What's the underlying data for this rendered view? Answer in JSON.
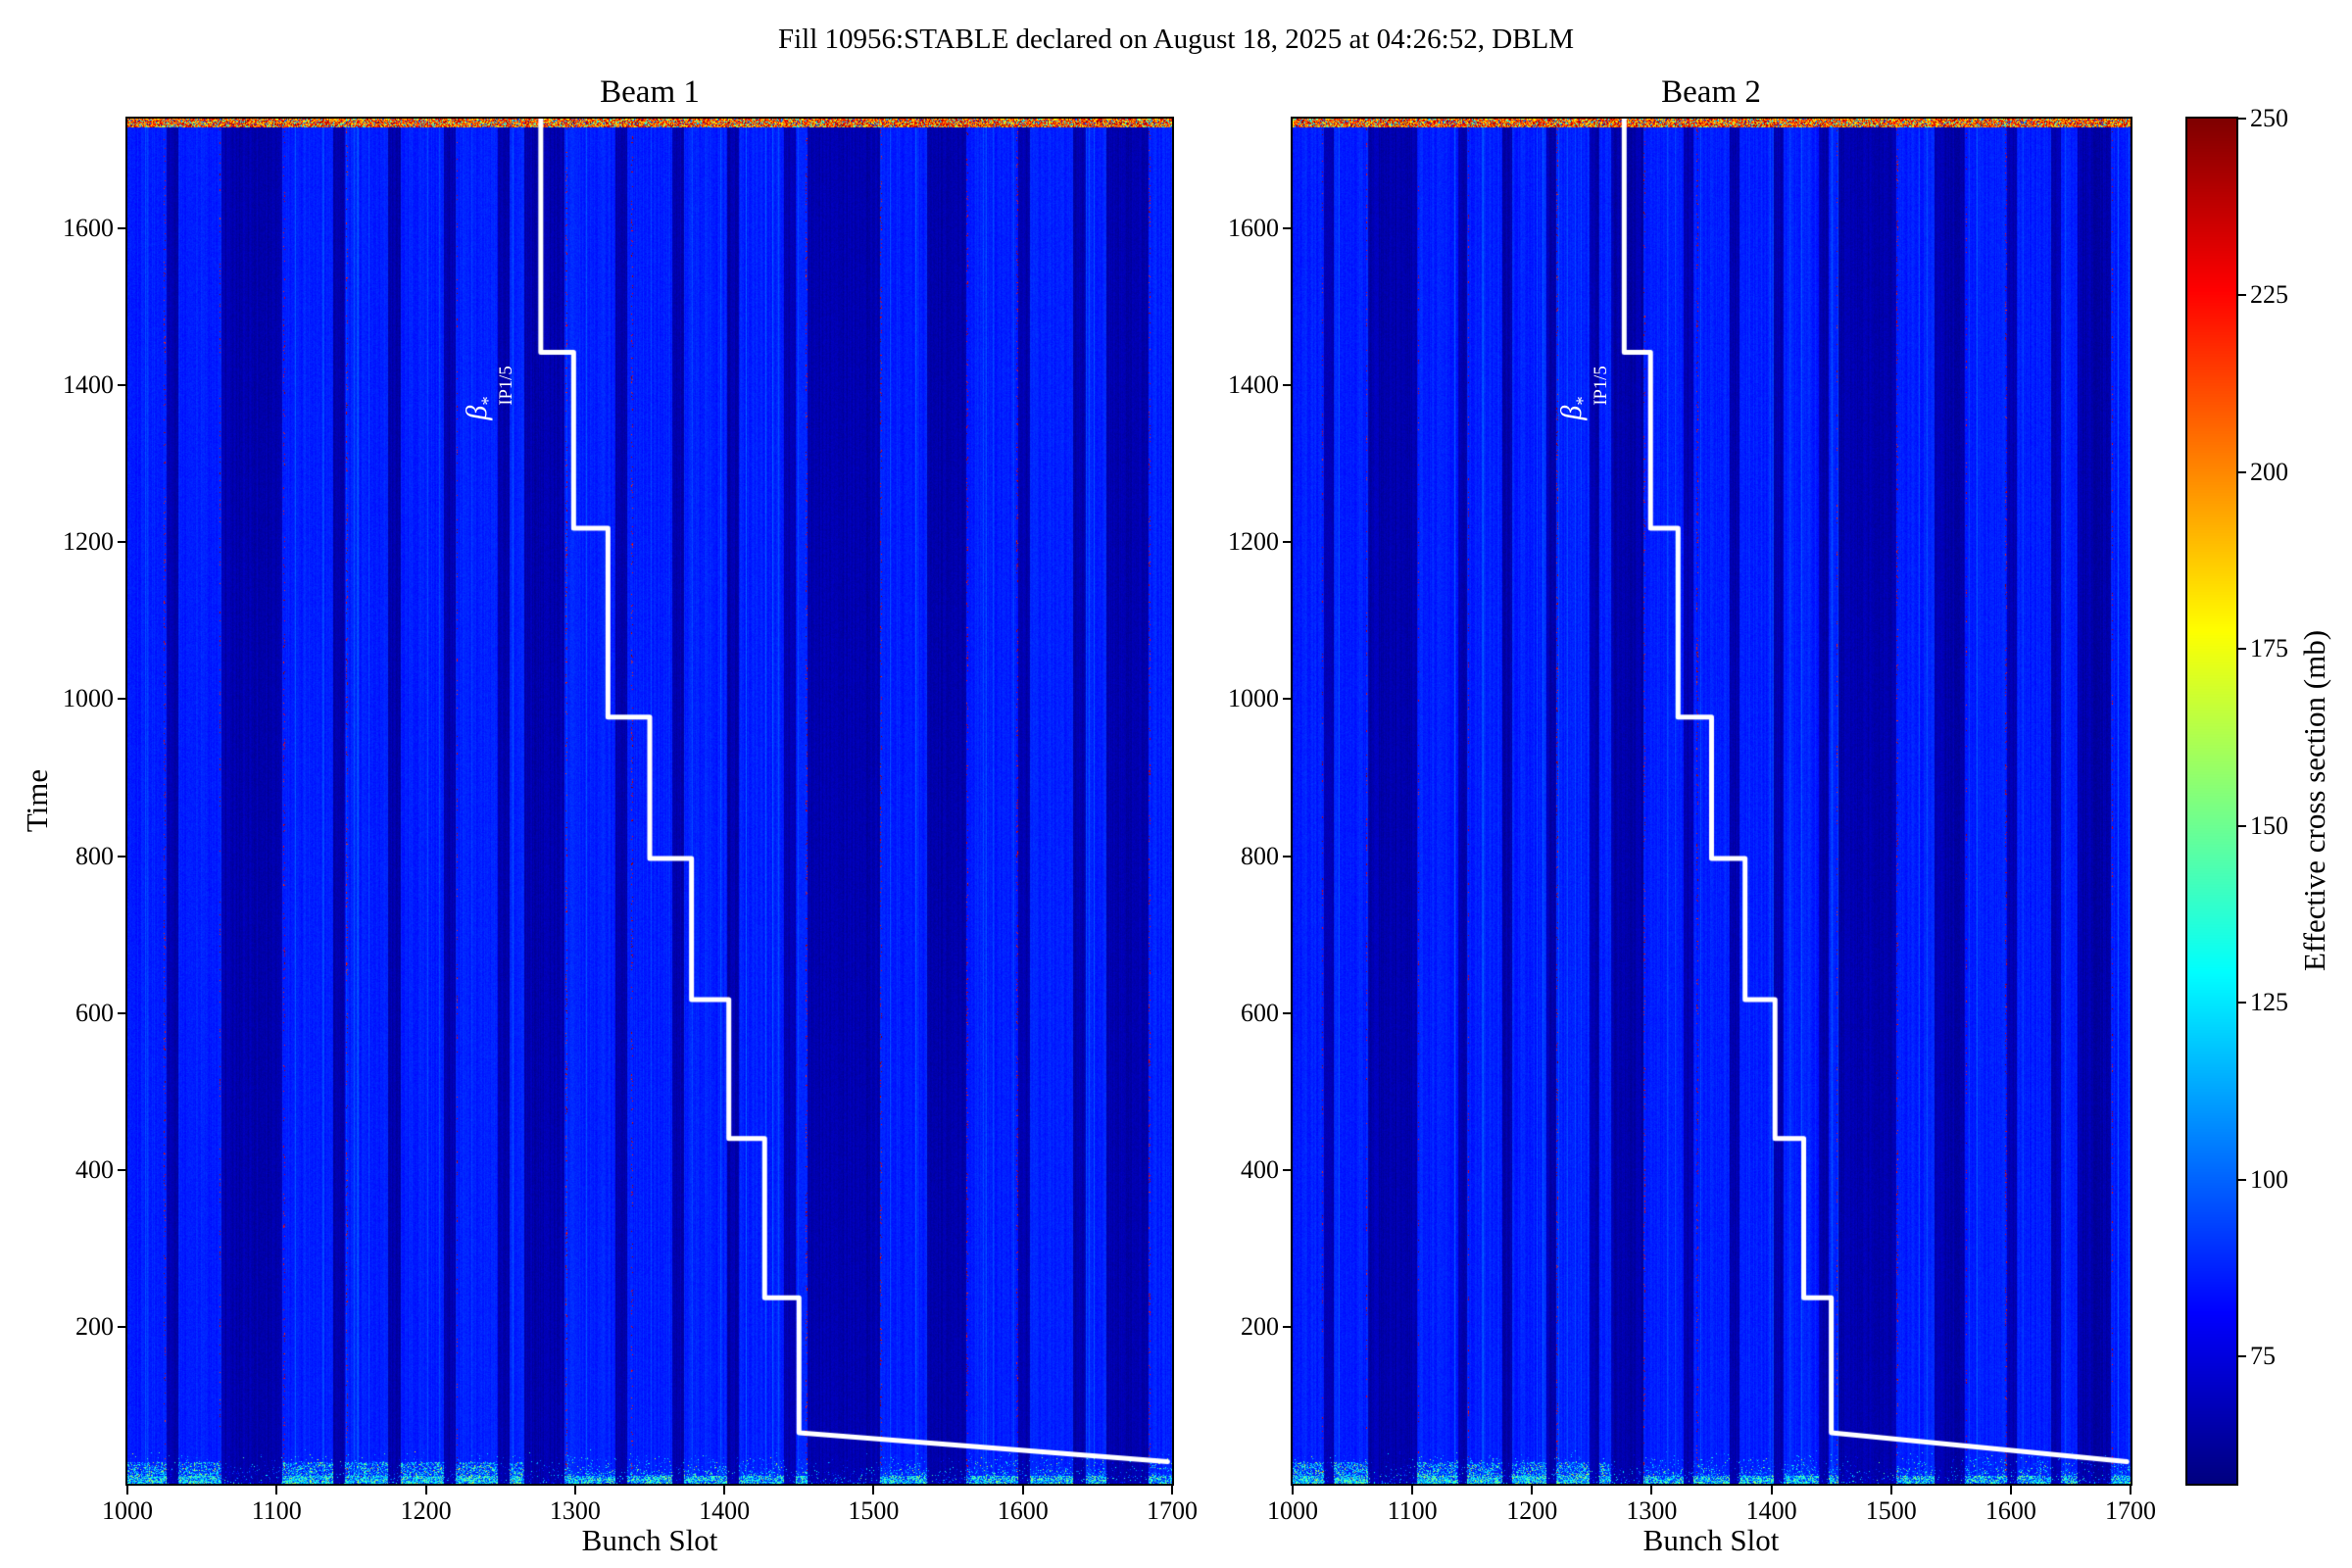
{
  "chart_data": {
    "type": "heatmap",
    "title": "Fill 10956:STABLE declared on August 18, 2025 at 04:26:52, DBLM",
    "xlabel": "Bunch Slot",
    "ylabel": "Time",
    "panels": [
      {
        "title": "Beam 1"
      },
      {
        "title": "Beam 2"
      }
    ],
    "x_range": [
      1000,
      1700
    ],
    "x_ticks": [
      1000,
      1100,
      1200,
      1300,
      1400,
      1500,
      1600,
      1700
    ],
    "y_range": [
      0,
      1740
    ],
    "y_ticks": [
      200,
      400,
      600,
      800,
      1000,
      1200,
      1400,
      1600
    ],
    "colorbar": {
      "label": "Effective cross section (mb)",
      "ticks": [
        75,
        100,
        125,
        150,
        175,
        200,
        225,
        250
      ],
      "range": [
        57,
        250
      ],
      "colormap": "jet"
    },
    "value_model": {
      "train_mb": 87,
      "gap_mb": 65,
      "top_strip_mb": [
        175,
        250
      ],
      "bottom_burst_mb": [
        95,
        180
      ],
      "red_dot_mb": [
        215,
        250
      ]
    },
    "dark_bands": [
      [
        1026,
        1034
      ],
      [
        1063,
        1104
      ],
      [
        1138,
        1146
      ],
      [
        1175,
        1183
      ],
      [
        1212,
        1220
      ],
      [
        1248,
        1256
      ],
      [
        1266,
        1293
      ],
      [
        1327,
        1335
      ],
      [
        1365,
        1373
      ],
      [
        1402,
        1410
      ],
      [
        1440,
        1448
      ],
      [
        1456,
        1504
      ],
      [
        1536,
        1562
      ],
      [
        1597,
        1605
      ],
      [
        1634,
        1642
      ],
      [
        1656,
        1684
      ]
    ],
    "red_marker_columns": [
      1025,
      1062,
      1105,
      1147,
      1221,
      1294,
      1338,
      1455,
      1505,
      1563,
      1596,
      1685
    ],
    "beta_line": {
      "label": {
        "base": "β",
        "sup": "*",
        "sub": "IP1/5"
      },
      "points": [
        [
          1277,
          1740
        ],
        [
          1277,
          1442
        ],
        [
          1299,
          1442
        ],
        [
          1299,
          1218
        ],
        [
          1322,
          1218
        ],
        [
          1322,
          977
        ],
        [
          1350,
          977
        ],
        [
          1350,
          797
        ],
        [
          1378,
          797
        ],
        [
          1378,
          617
        ],
        [
          1403,
          617
        ],
        [
          1403,
          440
        ],
        [
          1427,
          440
        ],
        [
          1427,
          237
        ],
        [
          1450,
          237
        ],
        [
          1450,
          65
        ],
        [
          1697,
          28
        ]
      ]
    }
  }
}
